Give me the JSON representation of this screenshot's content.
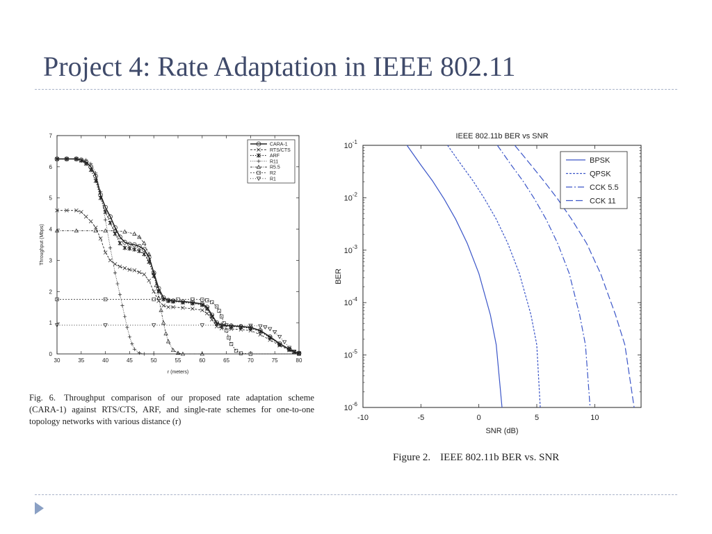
{
  "slide": {
    "title": "Project 4: Rate Adaptation in IEEE 802.11"
  },
  "left_figure": {
    "caption_label": "Fig. 6.",
    "caption_text": "Throughput comparison of our proposed rate adaptation scheme (CARA-1) against RTS/CTS, ARF, and single-rate schemes for one-to-one topology networks with various distance (r)"
  },
  "right_figure": {
    "caption_label": "Figure 2.",
    "caption_text": "IEEE 802.11b BER vs. SNR"
  },
  "chart_data": [
    {
      "type": "line",
      "title": "",
      "xlabel": "r (meters)",
      "ylabel": "Throughput (Mbps)",
      "xlim": [
        30,
        80
      ],
      "ylim": [
        0,
        7
      ],
      "xticks": [
        30,
        35,
        40,
        45,
        50,
        55,
        60,
        65,
        70,
        75,
        80
      ],
      "yticks": [
        0,
        1,
        2,
        3,
        4,
        5,
        6,
        7
      ],
      "grid": false,
      "legend_position": "top-right",
      "series": [
        {
          "name": "CARA-1",
          "marker": "circle",
          "dash": "solid",
          "width": 1.6,
          "x": [
            30,
            32,
            34,
            35,
            36,
            37,
            38,
            39,
            40,
            41,
            42,
            43,
            44,
            45,
            46,
            47,
            48,
            49,
            50,
            51,
            52,
            53,
            54,
            56,
            58,
            60,
            61,
            62,
            63,
            64,
            66,
            68,
            70,
            72,
            74,
            76,
            78,
            79,
            80
          ],
          "y": [
            6.25,
            6.25,
            6.25,
            6.22,
            6.15,
            6.0,
            5.7,
            5.1,
            4.7,
            4.4,
            4.05,
            3.75,
            3.58,
            3.52,
            3.5,
            3.45,
            3.35,
            3.1,
            2.6,
            2.1,
            1.8,
            1.72,
            1.7,
            1.68,
            1.65,
            1.6,
            1.5,
            1.25,
            1.0,
            0.92,
            0.9,
            0.88,
            0.85,
            0.75,
            0.55,
            0.33,
            0.15,
            0.06,
            0.02
          ]
        },
        {
          "name": "RTS/CTS",
          "marker": "x",
          "dash": "3,2",
          "width": 0.9,
          "x": [
            30,
            32,
            34,
            35,
            36,
            37,
            38,
            39,
            40,
            41,
            42,
            43,
            44,
            45,
            46,
            47,
            48,
            49,
            50,
            51,
            52,
            53,
            54,
            56,
            58,
            60,
            61,
            62,
            63,
            64,
            66,
            68,
            70,
            72,
            74,
            76,
            78,
            79,
            80
          ],
          "y": [
            4.6,
            4.6,
            4.6,
            4.55,
            4.4,
            4.25,
            4.05,
            3.7,
            3.25,
            3.0,
            2.88,
            2.8,
            2.75,
            2.7,
            2.68,
            2.62,
            2.55,
            2.35,
            2.0,
            1.7,
            1.55,
            1.5,
            1.5,
            1.48,
            1.45,
            1.4,
            1.3,
            1.1,
            0.88,
            0.82,
            0.8,
            0.78,
            0.75,
            0.62,
            0.45,
            0.27,
            0.12,
            0.05,
            0.02
          ]
        },
        {
          "name": "ARF",
          "marker": "star",
          "dash": "1.5,2",
          "width": 1.1,
          "x": [
            30,
            32,
            34,
            35,
            36,
            37,
            38,
            39,
            40,
            41,
            42,
            43,
            44,
            45,
            46,
            47,
            48,
            49,
            50,
            51,
            52,
            53,
            54,
            56,
            58,
            60,
            61,
            62,
            63,
            64,
            66,
            68,
            70,
            72,
            74,
            76,
            78,
            79,
            80
          ],
          "y": [
            6.25,
            6.25,
            6.25,
            6.2,
            6.1,
            5.9,
            5.55,
            5.0,
            4.55,
            4.2,
            3.85,
            3.55,
            3.4,
            3.38,
            3.35,
            3.3,
            3.2,
            2.95,
            2.5,
            2.0,
            1.75,
            1.7,
            1.68,
            1.65,
            1.62,
            1.57,
            1.45,
            1.2,
            0.96,
            0.9,
            0.88,
            0.86,
            0.82,
            0.72,
            0.52,
            0.3,
            0.14,
            0.06,
            0.02
          ]
        },
        {
          "name": "R11",
          "marker": "plus",
          "dash": "1,1.5",
          "width": 0.8,
          "x": [
            30,
            34,
            36,
            37,
            38,
            39,
            40,
            41,
            42,
            42.5,
            43,
            43.5,
            44,
            44.5,
            45,
            45.5,
            46,
            47,
            48,
            50
          ],
          "y": [
            6.25,
            6.25,
            6.22,
            6.1,
            5.8,
            5.2,
            4.3,
            3.4,
            2.6,
            2.25,
            1.9,
            1.55,
            1.2,
            0.85,
            0.55,
            0.32,
            0.15,
            0.03,
            0.0,
            0.0
          ]
        },
        {
          "name": "R5.5",
          "marker": "triangle-up",
          "dash": "3,1.5,1,1.5",
          "width": 0.8,
          "x": [
            30,
            34,
            38,
            40,
            42,
            44,
            46,
            47,
            48,
            49,
            50,
            50.5,
            51,
            51.5,
            52,
            52.5,
            53,
            54,
            55,
            56,
            60
          ],
          "y": [
            3.95,
            3.95,
            3.95,
            3.95,
            3.95,
            3.92,
            3.85,
            3.75,
            3.55,
            3.2,
            2.6,
            2.2,
            1.8,
            1.4,
            1.0,
            0.65,
            0.4,
            0.12,
            0.03,
            0.0,
            0.0
          ]
        },
        {
          "name": "R2",
          "marker": "square",
          "dash": "2,2",
          "width": 0.8,
          "x": [
            30,
            40,
            50,
            55,
            58,
            60,
            61,
            62,
            63,
            63.5,
            64,
            64.5,
            65,
            65.5,
            66,
            67,
            68,
            70,
            80
          ],
          "y": [
            1.75,
            1.75,
            1.75,
            1.75,
            1.75,
            1.74,
            1.72,
            1.66,
            1.52,
            1.38,
            1.2,
            0.98,
            0.75,
            0.52,
            0.32,
            0.1,
            0.02,
            0.0,
            0.0
          ]
        },
        {
          "name": "R1",
          "marker": "triangle-down",
          "dash": "1,2.5",
          "width": 0.8,
          "x": [
            30,
            40,
            50,
            60,
            65,
            70,
            72,
            73,
            74,
            75,
            76,
            77,
            78,
            79,
            80
          ],
          "y": [
            0.92,
            0.92,
            0.92,
            0.92,
            0.92,
            0.91,
            0.89,
            0.86,
            0.8,
            0.7,
            0.55,
            0.38,
            0.2,
            0.08,
            0.02
          ]
        }
      ]
    },
    {
      "type": "line",
      "title": "IEEE 802.11b BER vs SNR",
      "xlabel": "SNR (dB)",
      "ylabel": "BER",
      "xlim": [
        -10,
        14
      ],
      "ylim": [
        1e-06,
        0.1
      ],
      "yscale": "log",
      "xticks": [
        -10,
        -5,
        0,
        5,
        10
      ],
      "yticks": [
        "10^-1",
        "10^-2",
        "10^-3",
        "10^-4",
        "10^-5",
        "10^-6"
      ],
      "grid": false,
      "legend_position": "top-right",
      "color": "#3a55c8",
      "series": [
        {
          "name": "BPSK",
          "dash": "solid",
          "x": [
            -6.2,
            -5,
            -4,
            -3,
            -2,
            -1,
            0,
            1,
            1.5,
            2.0
          ],
          "y": [
            0.1,
            0.042,
            0.021,
            0.0095,
            0.0039,
            0.00135,
            0.00036,
            5.8e-05,
            1.56e-05,
            1e-06
          ]
        },
        {
          "name": "QPSK",
          "dash": "3,2",
          "x": [
            -2.7,
            -1.5,
            -0.5,
            0.5,
            1.5,
            2.5,
            3.5,
            4.5,
            5,
            5.3
          ],
          "y": [
            0.1,
            0.042,
            0.021,
            0.0095,
            0.0039,
            0.00135,
            0.00036,
            5.8e-05,
            1.56e-05,
            1e-06
          ]
        },
        {
          "name": "CCK 5.5",
          "dash": "9,3,2,3",
          "x": [
            1.6,
            2.8,
            3.8,
            4.8,
            5.8,
            6.8,
            7.8,
            8.7,
            9.2,
            9.6
          ],
          "y": [
            0.1,
            0.042,
            0.021,
            0.0095,
            0.0039,
            0.00135,
            0.00036,
            5.8e-05,
            1.56e-05,
            1e-06
          ]
        },
        {
          "name": "CCK 11",
          "dash": "10,4",
          "x": [
            3.1,
            4.5,
            5.6,
            6.8,
            8.0,
            9.3,
            10.5,
            11.8,
            12.6,
            13.4
          ],
          "y": [
            0.1,
            0.042,
            0.021,
            0.0095,
            0.0039,
            0.00135,
            0.00036,
            5.8e-05,
            1.56e-05,
            1e-06
          ]
        }
      ]
    }
  ]
}
